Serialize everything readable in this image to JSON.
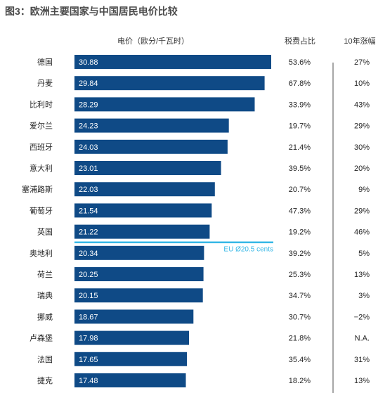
{
  "title": "图3：欧洲主要国家与中国居民电价比较",
  "colors": {
    "bar": "#0f4a86",
    "ref_line": "#36b7e6",
    "divider": "#8a8a8a",
    "title": "#4a4a4a"
  },
  "chart_data": {
    "type": "bar",
    "orientation": "horizontal",
    "title": "图3：欧洲主要国家与中国居民电价比较",
    "value_header": "电价（欧分/千瓦时）",
    "column_headers": [
      "税费占比",
      "10年涨幅"
    ],
    "categories": [
      "德国",
      "丹麦",
      "比利时",
      "爱尔兰",
      "西班牙",
      "意大利",
      "塞浦路斯",
      "葡萄牙",
      "英国",
      "奥地利",
      "荷兰",
      "瑞典",
      "挪威",
      "卢森堡",
      "法国",
      "捷克"
    ],
    "values": [
      30.88,
      29.84,
      28.29,
      24.23,
      24.03,
      23.01,
      22.03,
      21.54,
      21.22,
      20.34,
      20.25,
      20.15,
      18.67,
      17.98,
      17.65,
      17.48
    ],
    "value_labels": [
      "30.88",
      "29.84",
      "28.29",
      "24.23",
      "24.03",
      "23.01",
      "22.03",
      "21.54",
      "21.22",
      "20.34",
      "20.25",
      "20.15",
      "18.67",
      "17.98",
      "17.65",
      "17.48"
    ],
    "tax_share": [
      "53.6%",
      "67.8%",
      "33.9%",
      "19.7%",
      "21.4%",
      "39.5%",
      "20.7%",
      "47.3%",
      "19.2%",
      "39.2%",
      "25.3%",
      "34.7%",
      "30.7%",
      "21.8%",
      "35.4%",
      "18.2%"
    ],
    "ten_year_change": [
      "27%",
      "10%",
      "43%",
      "29%",
      "30%",
      "20%",
      "9%",
      "29%",
      "46%",
      "5%",
      "13%",
      "3%",
      "−2%",
      "N.A.",
      "31%",
      "13%"
    ],
    "reference_line": {
      "label": "EU Ø20.5 cents",
      "value": 20.5,
      "between": [
        "英国",
        "奥地利"
      ]
    },
    "xlim": [
      0,
      30.88
    ],
    "grid": false,
    "legend": "none"
  }
}
